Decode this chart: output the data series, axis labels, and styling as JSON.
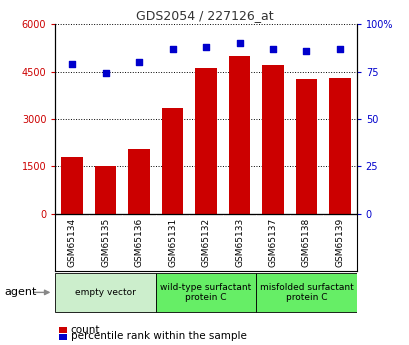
{
  "title": "GDS2054 / 227126_at",
  "samples": [
    "GSM65134",
    "GSM65135",
    "GSM65136",
    "GSM65131",
    "GSM65132",
    "GSM65133",
    "GSM65137",
    "GSM65138",
    "GSM65139"
  ],
  "counts": [
    1800,
    1500,
    2050,
    3350,
    4600,
    5000,
    4700,
    4250,
    4300
  ],
  "percentiles": [
    79,
    74,
    80,
    87,
    88,
    90,
    87,
    86,
    87
  ],
  "groups": [
    {
      "label": "empty vector",
      "start": 0,
      "end": 3,
      "color": "#cceecc"
    },
    {
      "label": "wild-type surfactant\nprotein C",
      "start": 3,
      "end": 6,
      "color": "#66ee66"
    },
    {
      "label": "misfolded surfactant\nprotein C",
      "start": 6,
      "end": 9,
      "color": "#66ee66"
    }
  ],
  "bar_color": "#cc0000",
  "dot_color": "#0000cc",
  "left_axis_color": "#cc0000",
  "right_axis_color": "#0000cc",
  "ylim_left": [
    0,
    6000
  ],
  "ylim_right": [
    0,
    100
  ],
  "yticks_left": [
    0,
    1500,
    3000,
    4500,
    6000
  ],
  "ytick_labels_left": [
    "0",
    "1500",
    "3000",
    "4500",
    "6000"
  ],
  "yticks_right": [
    0,
    25,
    50,
    75,
    100
  ],
  "ytick_labels_right": [
    "0",
    "25",
    "50",
    "75",
    "100%"
  ],
  "bg_color": "#ffffff",
  "plot_bg": "#ffffff",
  "grid_color": "#000000",
  "tick_area_color": "#d0d0d0",
  "agent_label": "agent",
  "legend_count_label": "count",
  "legend_pct_label": "percentile rank within the sample"
}
